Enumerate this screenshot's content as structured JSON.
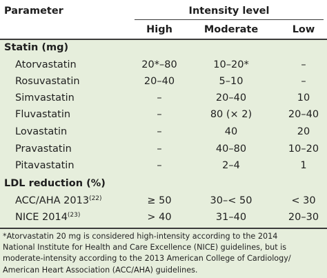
{
  "header": {
    "parameter": "Parameter",
    "intensity": "Intensity level",
    "high": "High",
    "moderate": "Moderate",
    "low": "Low"
  },
  "statin_section": "Statin (mg)",
  "statins": [
    {
      "name": "Atorvastatin",
      "high": "20*–80",
      "moderate": "10–20*",
      "low": "–"
    },
    {
      "name": "Rosuvastatin",
      "high": "20–40",
      "moderate": "5–10",
      "low": "–"
    },
    {
      "name": "Simvastatin",
      "high": "–",
      "moderate": "20–40",
      "low": "10"
    },
    {
      "name": "Fluvastatin",
      "high": "–",
      "moderate": "80 (× 2)",
      "low": "20–40"
    },
    {
      "name": "Lovastatin",
      "high": "–",
      "moderate": "40",
      "low": "20"
    },
    {
      "name": "Pravastatin",
      "high": "–",
      "moderate": "40–80",
      "low": "10–20"
    },
    {
      "name": "Pitavastatin",
      "high": "–",
      "moderate": "2–4",
      "low": "1"
    }
  ],
  "ldl_section": "LDL reduction (%)",
  "ldl": [
    {
      "name": "ACC/AHA 2013",
      "ref": "(22)",
      "high": "≥ 50",
      "moderate": "30–< 50",
      "low": "< 30"
    },
    {
      "name": "NICE 2014",
      "ref": "(23)",
      "high": "> 40",
      "moderate": "31–40",
      "low": "20–30"
    }
  ],
  "footnote": [
    "*Atorvastatin 20 mg is considered high-intensity according to the 2014",
    "National Institute for Health and Care Excellence (NICE) guidelines, but is",
    "moderate-intensity according to the 2013 American College of Cardiology/",
    "American Heart Association (ACC/AHA) guidelines."
  ]
}
